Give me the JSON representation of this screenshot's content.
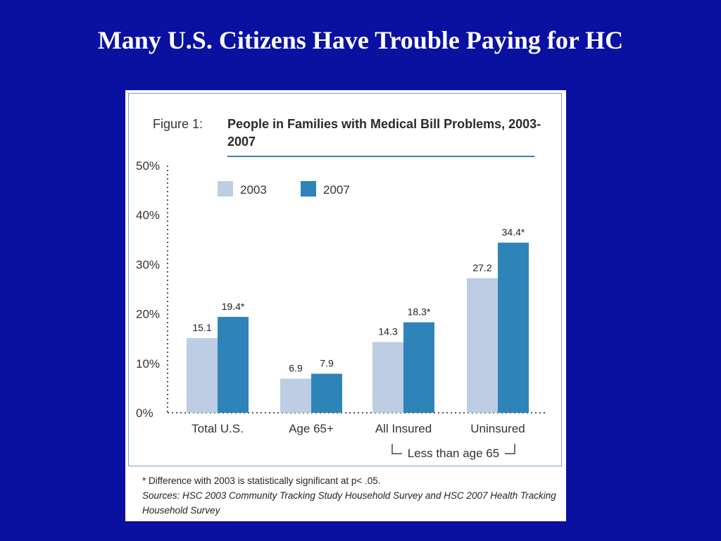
{
  "slide": {
    "title": "Many U.S. Citizens Have Trouble Paying for HC"
  },
  "figure": {
    "label": "Figure 1:",
    "title": "People in Families with Medical Bill Problems, 2003-2007",
    "footnote": "* Difference with 2003 is statistically significant at p< .05.",
    "sources": "Sources: HSC 2003 Community Tracking Study Household Survey and HSC 2007 Health Tracking Household Survey",
    "group_note": "Less than age 65"
  },
  "colors": {
    "background": "#0a10a0",
    "series_2003": "#bccde4",
    "series_2007": "#2e84b8",
    "rule": "#2e84b8"
  },
  "chart_data": {
    "type": "bar",
    "categories": [
      "Total U.S.",
      "Age 65+",
      "All Insured",
      "Uninsured"
    ],
    "series": [
      {
        "name": "2003",
        "values": [
          15.1,
          6.9,
          14.3,
          27.2
        ],
        "labels": [
          "15.1",
          "6.9",
          "14.3",
          "27.2"
        ]
      },
      {
        "name": "2007",
        "values": [
          19.4,
          7.9,
          18.3,
          34.4
        ],
        "labels": [
          "19.4*",
          "7.9",
          "18.3*",
          "34.4*"
        ]
      }
    ],
    "yticks": [
      "0%",
      "10%",
      "20%",
      "30%",
      "40%",
      "50%"
    ],
    "ylim": [
      0,
      50
    ],
    "legend_position": "top-left",
    "grid": false
  }
}
